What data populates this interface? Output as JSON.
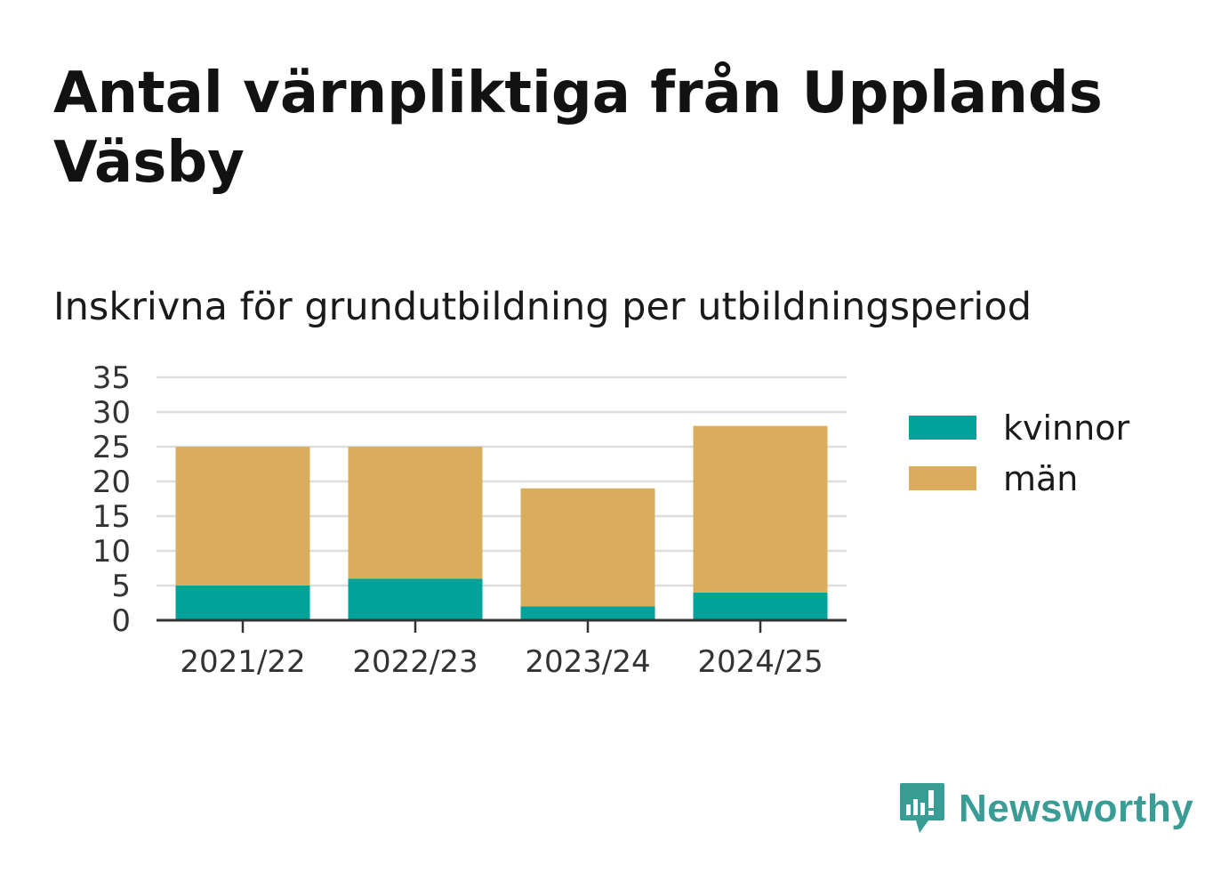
{
  "title": "Antal värnpliktiga från Upplands Väsby",
  "subtitle": "Inskrivna för grundutbildning per utbildningsperiod",
  "brand": {
    "name": "Newsworthy",
    "icon": "newsworthy-logo-icon",
    "color": "#3a9d95"
  },
  "chart_data": {
    "type": "bar",
    "stacked": true,
    "categories": [
      "2021/22",
      "2022/23",
      "2023/24",
      "2024/25"
    ],
    "series": [
      {
        "name": "kvinnor",
        "color": "#00a29a",
        "values": [
          5,
          6,
          2,
          4
        ]
      },
      {
        "name": "män",
        "color": "#d9ad5b",
        "values": [
          20,
          19,
          17,
          24
        ]
      }
    ],
    "yticks": [
      "0",
      "5",
      "10",
      "15",
      "20",
      "25",
      "30",
      "35"
    ],
    "ylim": [
      0,
      35
    ],
    "grid": true,
    "legend": "right"
  }
}
